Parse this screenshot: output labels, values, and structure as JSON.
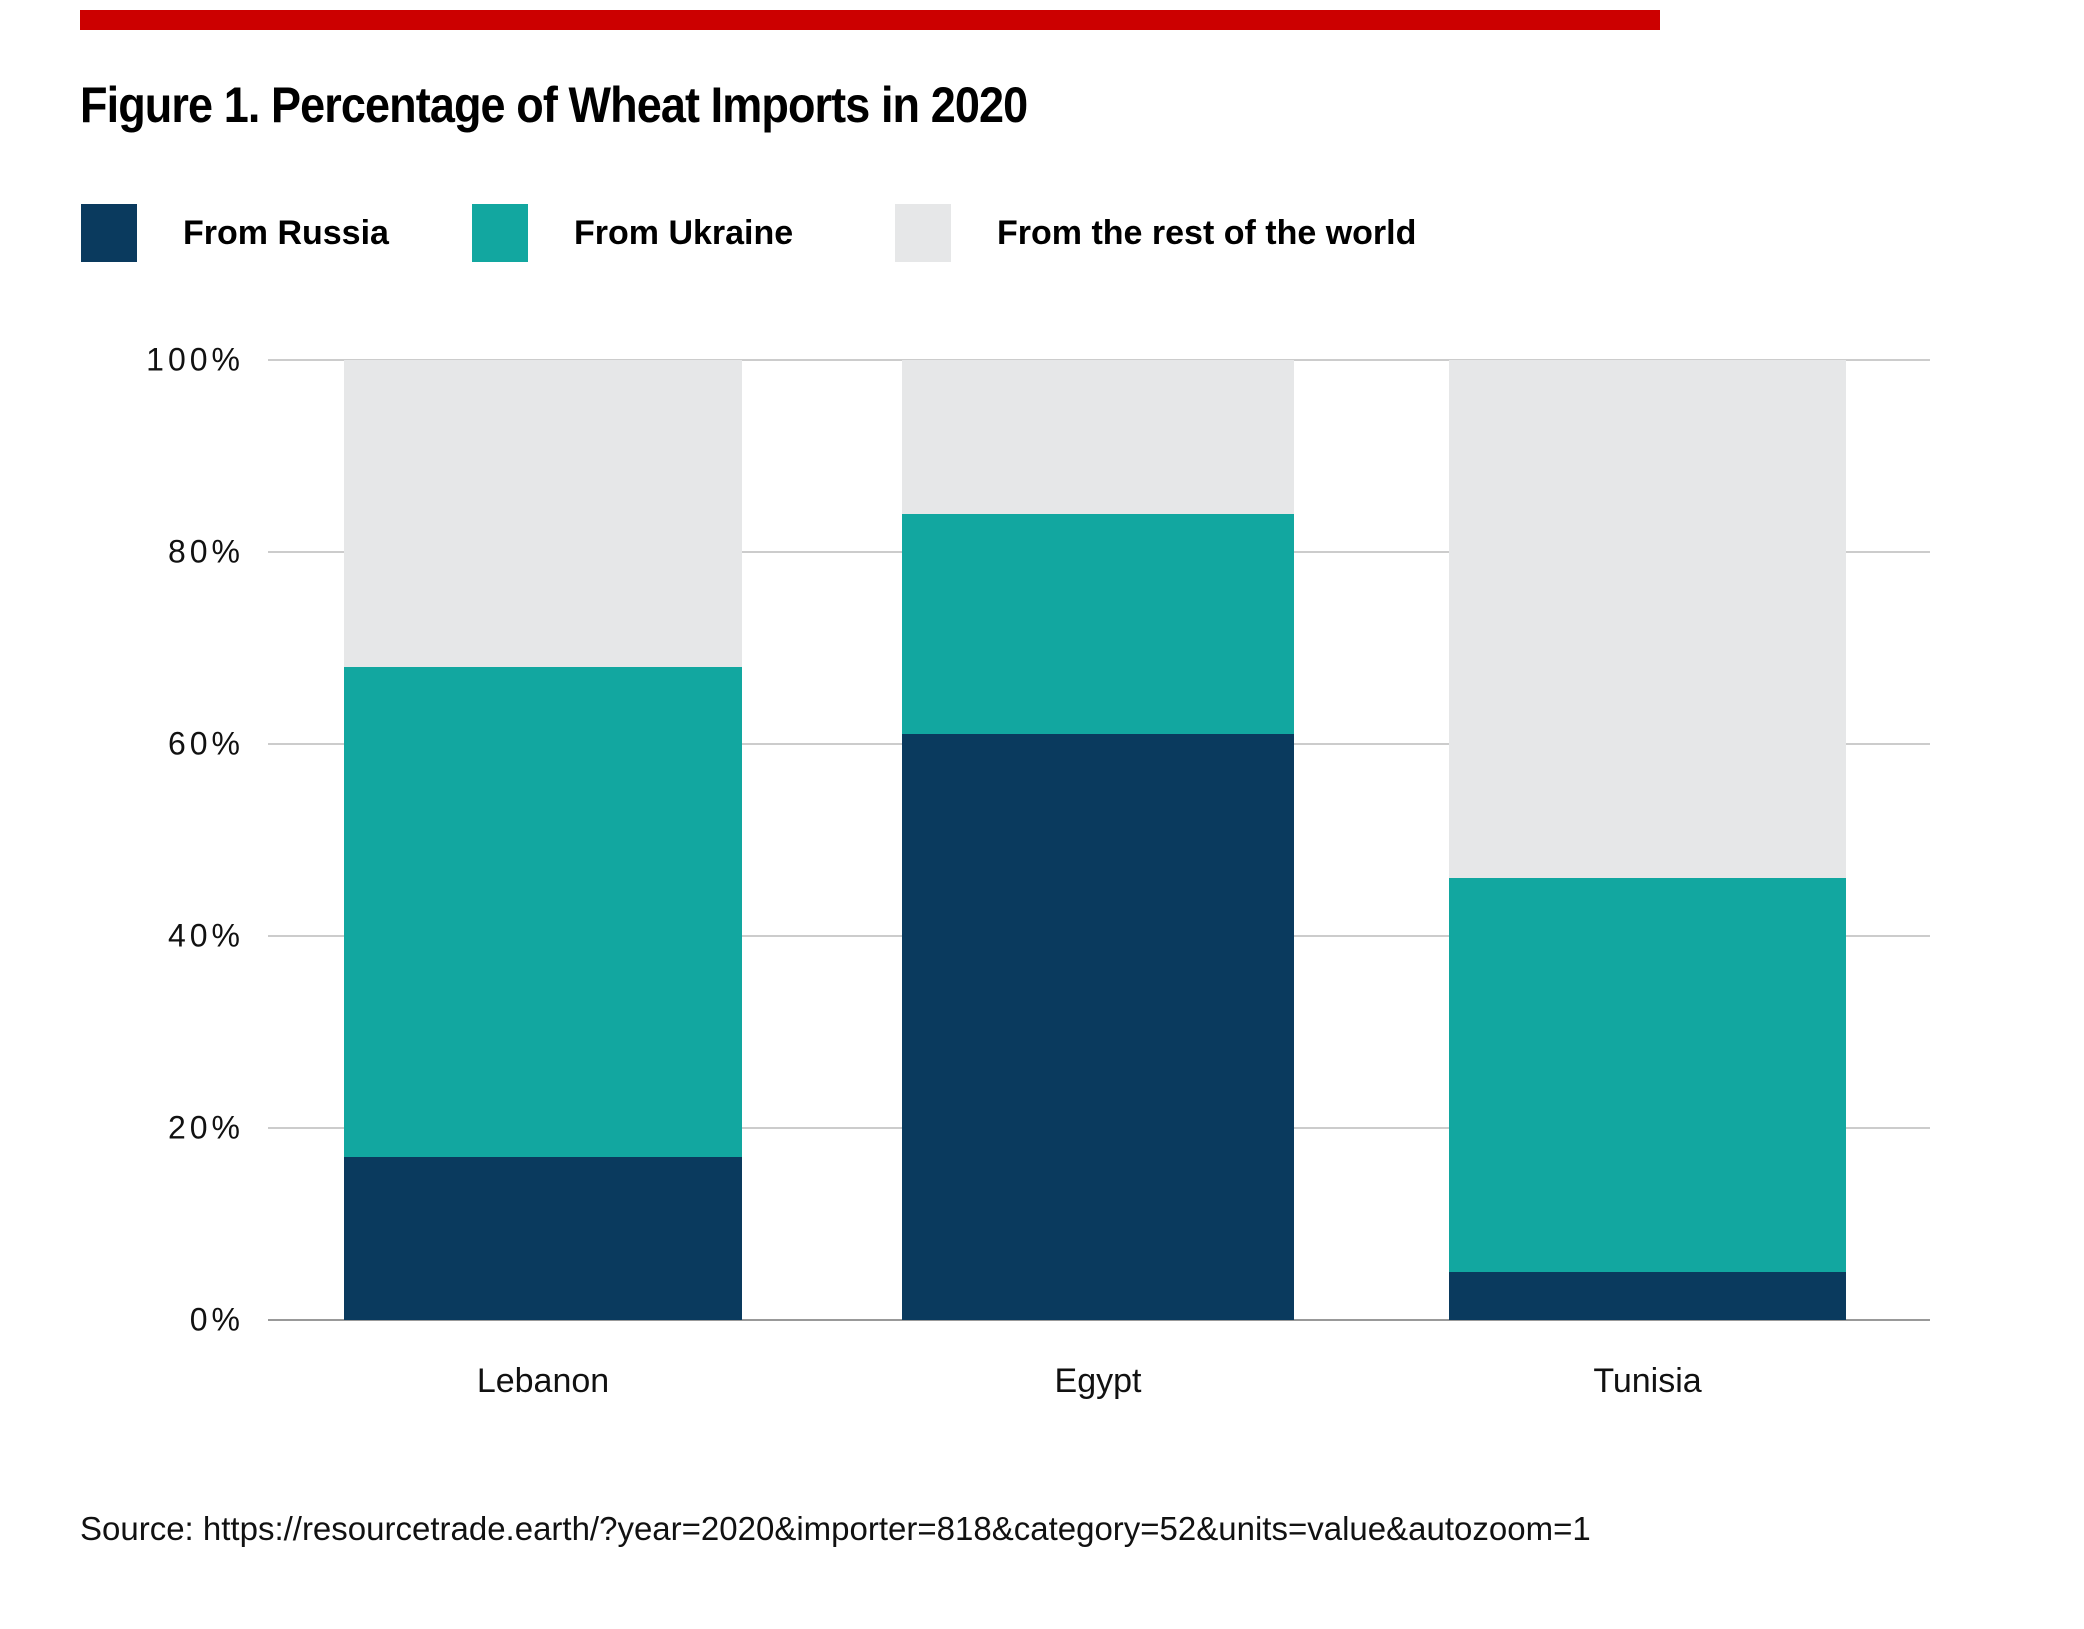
{
  "page": {
    "background": "#ffffff",
    "accent_bar_color": "#cc0000"
  },
  "figure": {
    "title": "Figure 1. Percentage of Wheat Imports in 2020",
    "source": "Source: https://resourcetrade.earth/?year=2020&importer=818&category=52&units=value&autozoom=1"
  },
  "chart_data": {
    "type": "bar",
    "stacked": true,
    "title": "Figure 1. Percentage of Wheat Imports in 2020",
    "categories": [
      "Lebanon",
      "Egypt",
      "Tunisia"
    ],
    "series": [
      {
        "name": "From Russia",
        "color": "#0a3a5e",
        "values": [
          17,
          61,
          5
        ]
      },
      {
        "name": "From Ukraine",
        "color": "#12a7a0",
        "values": [
          51,
          23,
          41
        ]
      },
      {
        "name": "From the rest of the world",
        "color": "#e6e7e8",
        "values": [
          32,
          16,
          54
        ]
      }
    ],
    "xlabel": "",
    "ylabel": "",
    "ylim": [
      0,
      100
    ],
    "yticks": [
      0,
      20,
      40,
      60,
      80,
      100
    ],
    "ytick_labels": [
      "0%",
      "20%",
      "40%",
      "60%",
      "80%",
      "100%"
    ],
    "grid": true,
    "legend_position": "top",
    "colors": {
      "gridline": "#cccccc",
      "axis_line": "#999999",
      "text": "#111111"
    }
  }
}
